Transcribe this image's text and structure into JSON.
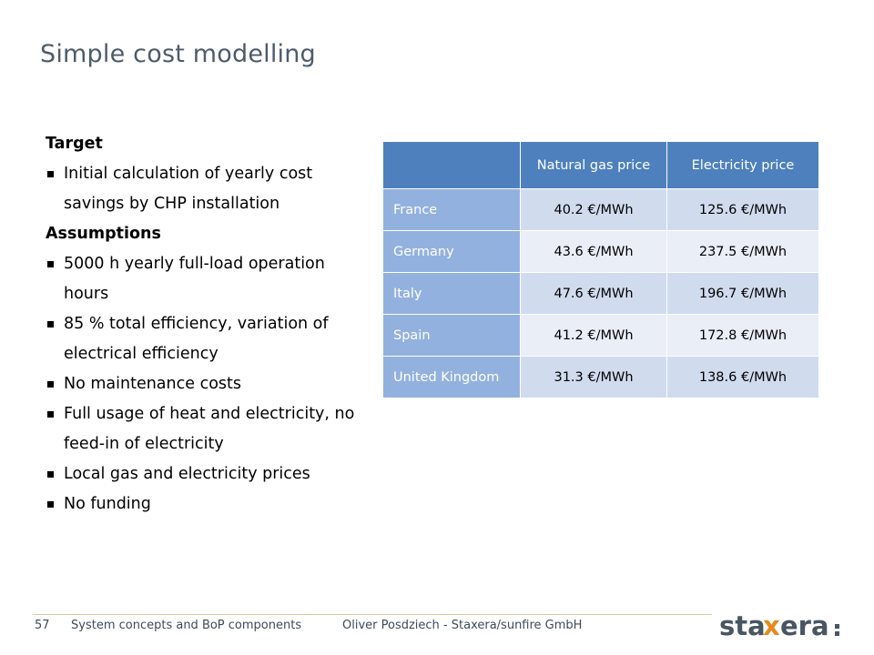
{
  "slide": {
    "title": "Simple cost modelling"
  },
  "content": {
    "target_heading": "Target",
    "target_items": [
      "Initial calculation of yearly cost savings by CHP installation"
    ],
    "assumptions_heading": "Assumptions",
    "assumption_items": [
      "5000 h yearly full-load operation hours",
      "85 % total efficiency, variation of electrical efficiency",
      "No maintenance costs",
      "Full usage of heat and electricity, no feed-in of electricity",
      "Local gas and electricity prices",
      "No funding"
    ]
  },
  "price_table": {
    "headers": [
      "",
      "Natural gas price",
      "Electricity price"
    ],
    "rows": [
      {
        "country": "France",
        "gas": "40.2 €/MWh",
        "electricity": "125.6 €/MWh"
      },
      {
        "country": "Germany",
        "gas": "43.6 €/MWh",
        "electricity": "237.5 €/MWh"
      },
      {
        "country": "Italy",
        "gas": "47.6 €/MWh",
        "electricity": "196.7 €/MWh"
      },
      {
        "country": "Spain",
        "gas": "41.2 €/MWh",
        "electricity": "172.8 €/MWh"
      },
      {
        "country": "United Kingdom",
        "gas": "31.3 €/MWh",
        "electricity": "138.6 €/MWh"
      }
    ]
  },
  "footer": {
    "page_number": "57",
    "section": "System concepts and BoP components",
    "author": "Oliver Posdziech - Staxera/sunfire GmbH"
  },
  "logo": {
    "text_main": "sta",
    "text_x": "x",
    "text_end": "era",
    "colors": {
      "main": "#4a5562",
      "accent": "#e8891d"
    }
  }
}
